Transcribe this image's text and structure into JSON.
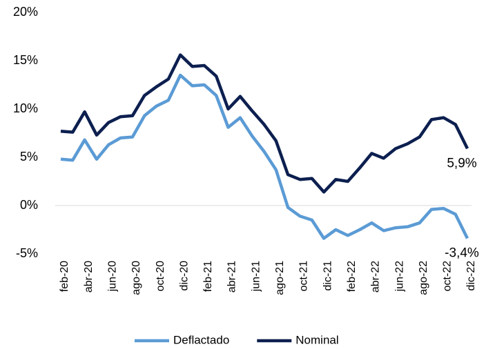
{
  "chart_data": {
    "type": "line",
    "categories": [
      "feb-20",
      null,
      "abr-20",
      null,
      "jun-20",
      null,
      "ago-20",
      null,
      "oct-20",
      null,
      "dic-20",
      null,
      "feb-21",
      null,
      "abr-21",
      null,
      "jun-21",
      null,
      "ago-21",
      null,
      "oct-21",
      null,
      "dic-21",
      null,
      "feb-22",
      null,
      "abr-22",
      null,
      "jun-22",
      null,
      "ago-22",
      null,
      "oct-22",
      null,
      "dic-22"
    ],
    "series": [
      {
        "name": "Deflactado",
        "color": "#5b9bd5",
        "values": [
          4.8,
          4.7,
          6.8,
          4.8,
          6.3,
          7.0,
          7.1,
          9.3,
          10.3,
          10.9,
          13.5,
          12.4,
          12.5,
          11.4,
          8.1,
          9.1,
          7.2,
          5.6,
          3.7,
          -0.2,
          -1.1,
          -1.5,
          -3.4,
          -2.5,
          -3.1,
          -2.5,
          -1.8,
          -2.6,
          -2.3,
          -2.2,
          -1.8,
          -0.4,
          -0.3,
          -0.9,
          -3.4
        ]
      },
      {
        "name": "Nominal",
        "color": "#0c1f4f",
        "values": [
          7.7,
          7.6,
          9.7,
          7.3,
          8.6,
          9.2,
          9.3,
          11.4,
          12.3,
          13.1,
          15.6,
          14.4,
          14.5,
          13.4,
          10.0,
          11.3,
          9.8,
          8.4,
          6.7,
          3.2,
          2.7,
          2.8,
          1.4,
          2.7,
          2.5,
          3.9,
          5.4,
          4.9,
          5.9,
          6.4,
          7.1,
          8.9,
          9.1,
          8.4,
          5.9
        ]
      }
    ],
    "annotations": [
      "-3,4%",
      "5,9%"
    ],
    "ylim": [
      -5,
      20
    ],
    "yticks": [
      {
        "value": -5,
        "label": "-5%"
      },
      {
        "value": 0,
        "label": "0%"
      },
      {
        "value": 5,
        "label": "5%"
      },
      {
        "value": 10,
        "label": "10%"
      },
      {
        "value": 15,
        "label": "15%"
      },
      {
        "value": 20,
        "label": "20%"
      }
    ],
    "grid": false,
    "legend": "bottom"
  }
}
